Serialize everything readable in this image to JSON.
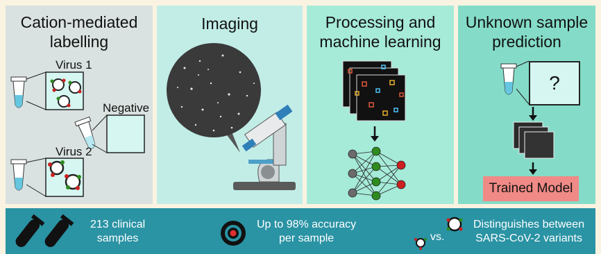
{
  "panels": {
    "labelling": {
      "title_line1": "Cation-mediated",
      "title_line2": "labelling",
      "virus1": "Virus 1",
      "virus2": "Virus 2",
      "negative": "Negative"
    },
    "imaging": {
      "title": "Imaging"
    },
    "processing": {
      "title_line1": "Processing and",
      "title_line2": "machine learning"
    },
    "prediction": {
      "title_line1": "Unknown sample",
      "title_line2": "prediction",
      "question_mark": "?",
      "model_label": "Trained Model"
    }
  },
  "summary": {
    "samples_line1": "213 clinical",
    "samples_line2": "samples",
    "accuracy_line1": "Up to 98% accuracy",
    "accuracy_line2": "per sample",
    "vs_label": "vs.",
    "variants_line1": "Distinguishes between",
    "variants_line2": "SARS-CoV-2 variants"
  },
  "colors": {
    "panel1": "#d9e2e0",
    "panel2": "#c2ede7",
    "panel3": "#a6ead8",
    "panel4": "#84dcc8",
    "bottom_bar": "#2a93a4",
    "model_box": "#f08a86",
    "nn_green": "#2e8b1e",
    "nn_red": "#cc2020",
    "nn_gray": "#6b6b6b"
  }
}
